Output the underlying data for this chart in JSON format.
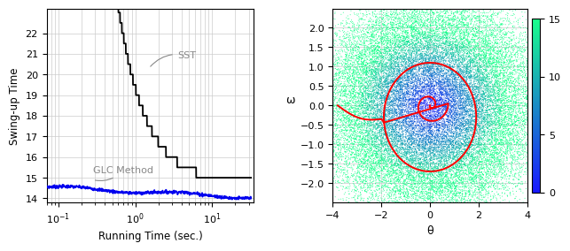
{
  "left_plot": {
    "xlabel": "Running Time (sec.)",
    "ylabel": "Swing-up Time",
    "xlim": [
      0.07,
      35
    ],
    "ylim": [
      13.8,
      23.2
    ],
    "yticks": [
      14,
      15,
      16,
      17,
      18,
      19,
      20,
      21,
      22
    ],
    "sst_color": "#000000",
    "glc_color": "#0000ee",
    "label_color": "#888888",
    "grid_color": "#cccccc"
  },
  "right_plot": {
    "xlabel": "θ",
    "ylabel": "ω",
    "xlim": [
      -4,
      4
    ],
    "ylim": [
      -2.5,
      2.5
    ],
    "xticks": [
      -4,
      -2,
      0,
      2,
      4
    ],
    "yticks": [
      -2,
      -1.5,
      -1,
      -0.5,
      0,
      0.5,
      1,
      1.5,
      2
    ],
    "colorbar_min": 0,
    "colorbar_max": 15,
    "colorbar_ticks": [
      0,
      5,
      10,
      15
    ],
    "trajectory_color": "#ff0000",
    "grid_color": "#cccccc"
  }
}
